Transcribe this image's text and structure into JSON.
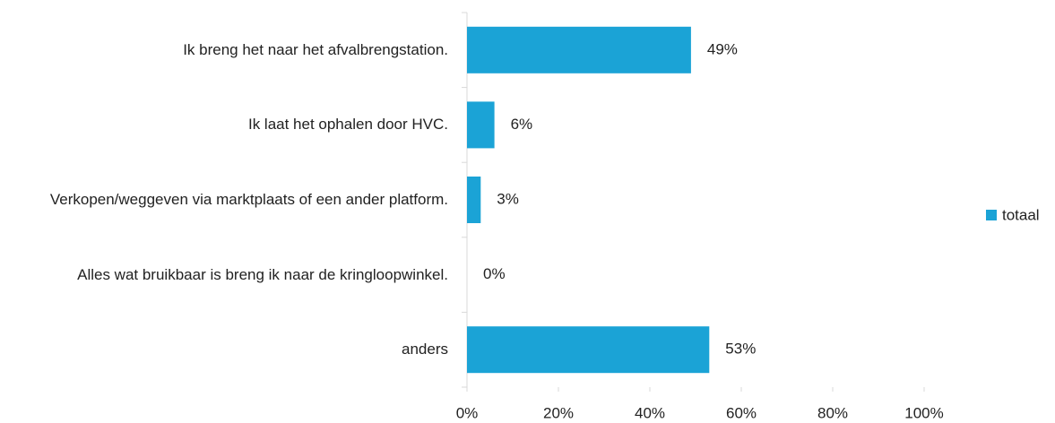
{
  "chart_data": {
    "type": "bar",
    "orientation": "horizontal",
    "categories": [
      "Ik breng het naar het afvalbrengstation.",
      "Ik laat het ophalen door HVC.",
      "Verkopen/weggeven via marktplaats of een ander platform.",
      "Alles wat bruikbaar is breng ik naar de kringloopwinkel.",
      "anders"
    ],
    "series": [
      {
        "name": "totaal",
        "color": "#1ba3d6",
        "values": [
          49,
          6,
          3,
          0,
          53
        ],
        "value_labels": [
          "49%",
          "6%",
          "3%",
          "0%",
          "53%"
        ]
      }
    ],
    "xlim": [
      0,
      100
    ],
    "xticks": [
      {
        "value": 0,
        "label": "0%"
      },
      {
        "value": 20,
        "label": "20%"
      },
      {
        "value": 40,
        "label": "40%"
      },
      {
        "value": 60,
        "label": "60%"
      },
      {
        "value": 80,
        "label": "80%"
      },
      {
        "value": 100,
        "label": "100%"
      }
    ],
    "grid": false,
    "legend": "right"
  }
}
